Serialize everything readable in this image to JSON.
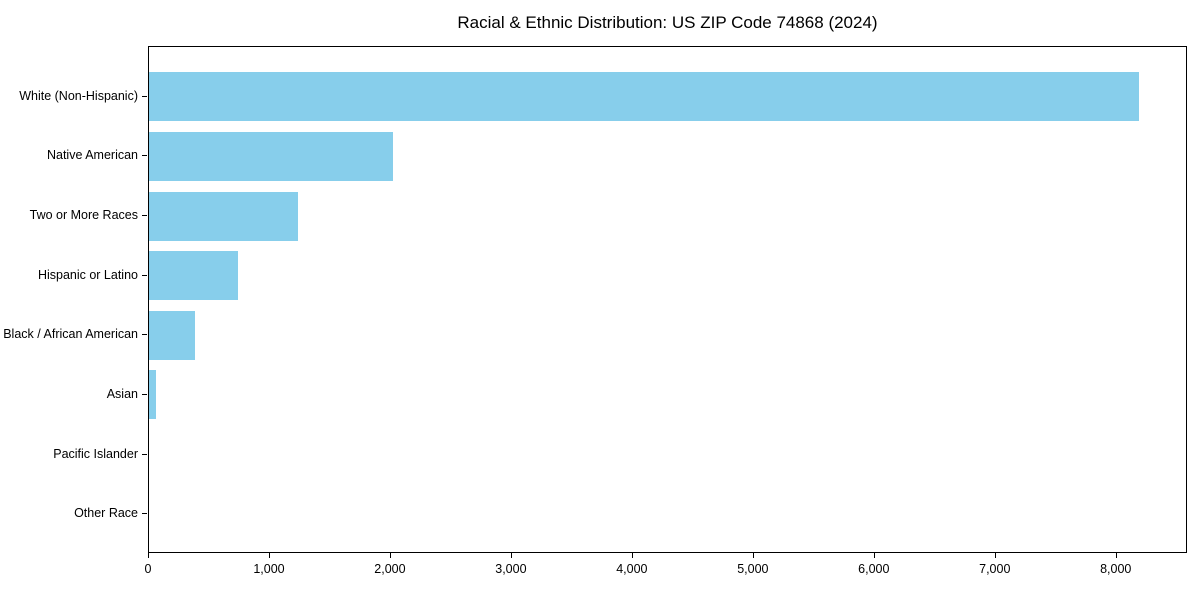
{
  "title": "Racial & Ethnic Distribution: US ZIP Code 74868 (2024)",
  "colors": {
    "bar": "#87CEEB",
    "axis": "#000000",
    "background": "#ffffff",
    "text": "#000000"
  },
  "chart_data": {
    "type": "bar",
    "orientation": "horizontal",
    "title": "Racial & Ethnic Distribution: US ZIP Code 74868 (2024)",
    "categories": [
      "White (Non-Hispanic)",
      "Native American",
      "Two or More Races",
      "Hispanic or Latino",
      "Black / African American",
      "Asian",
      "Pacific Islander",
      "Other Race"
    ],
    "values": [
      8180,
      2015,
      1230,
      735,
      380,
      55,
      0,
      0
    ],
    "xlabel": "",
    "ylabel": "",
    "xlim": [
      0,
      8589
    ],
    "xticks": [
      0,
      1000,
      2000,
      3000,
      4000,
      5000,
      6000,
      7000,
      8000
    ],
    "xtick_labels": [
      "0",
      "1,000",
      "2,000",
      "3,000",
      "4,000",
      "5,000",
      "6,000",
      "7,000",
      "8,000"
    ],
    "bar_color": "#87CEEB",
    "grid": false,
    "legend": null
  }
}
